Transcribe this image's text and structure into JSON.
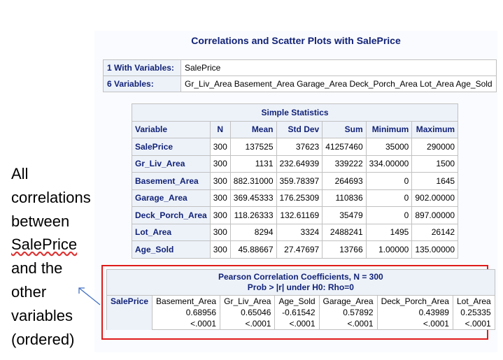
{
  "title": "Correlations and Scatter Plots with SalePrice",
  "with_variables": {
    "label": "1 With Variables:",
    "value": "SalePrice"
  },
  "variables": {
    "label": "6 Variables:",
    "value": "Gr_Liv_Area Basement_Area Garage_Area Deck_Porch_Area Lot_Area Age_Sold"
  },
  "simple_stats": {
    "title": "Simple Statistics",
    "columns": [
      "Variable",
      "N",
      "Mean",
      "Std Dev",
      "Sum",
      "Minimum",
      "Maximum"
    ],
    "rows": [
      [
        "SalePrice",
        "300",
        "137525",
        "37623",
        "41257460",
        "35000",
        "290000"
      ],
      [
        "Gr_Liv_Area",
        "300",
        "1131",
        "232.64939",
        "339222",
        "334.00000",
        "1500"
      ],
      [
        "Basement_Area",
        "300",
        "882.31000",
        "359.78397",
        "264693",
        "0",
        "1645"
      ],
      [
        "Garage_Area",
        "300",
        "369.45333",
        "176.25309",
        "110836",
        "0",
        "902.00000"
      ],
      [
        "Deck_Porch_Area",
        "300",
        "118.26333",
        "132.61169",
        "35479",
        "0",
        "897.00000"
      ],
      [
        "Lot_Area",
        "300",
        "8294",
        "3324",
        "2488241",
        "1495",
        "26142"
      ],
      [
        "Age_Sold",
        "300",
        "45.88667",
        "27.47697",
        "13766",
        "1.00000",
        "135.00000"
      ]
    ]
  },
  "pearson": {
    "title_line1": "Pearson Correlation Coefficients, N = 300",
    "title_line2": "Prob > |r| under H0: Rho=0",
    "row_label": "SalePrice",
    "cols": [
      {
        "name": "Basement_Area",
        "r": "0.68956",
        "p": "<.0001"
      },
      {
        "name": "Gr_Liv_Area",
        "r": "0.65046",
        "p": "<.0001"
      },
      {
        "name": "Age_Sold",
        "r": "-0.61542",
        "p": "<.0001"
      },
      {
        "name": "Garage_Area",
        "r": "0.57892",
        "p": "<.0001"
      },
      {
        "name": "Deck_Porch_Area",
        "r": "0.43989",
        "p": "<.0001"
      },
      {
        "name": "Lot_Area",
        "r": "0.25335",
        "p": "<.0001"
      }
    ]
  },
  "annotation": {
    "line1": "All",
    "line2": "correlations",
    "line3": "between",
    "line4": "SalePrice",
    "line5": "and the",
    "line6": "other",
    "line7": "variables",
    "line8": "(ordered)"
  },
  "colors": {
    "header_text": "#112277",
    "header_bg": "#edf2f9",
    "highlight_box": "#e01b1b"
  }
}
